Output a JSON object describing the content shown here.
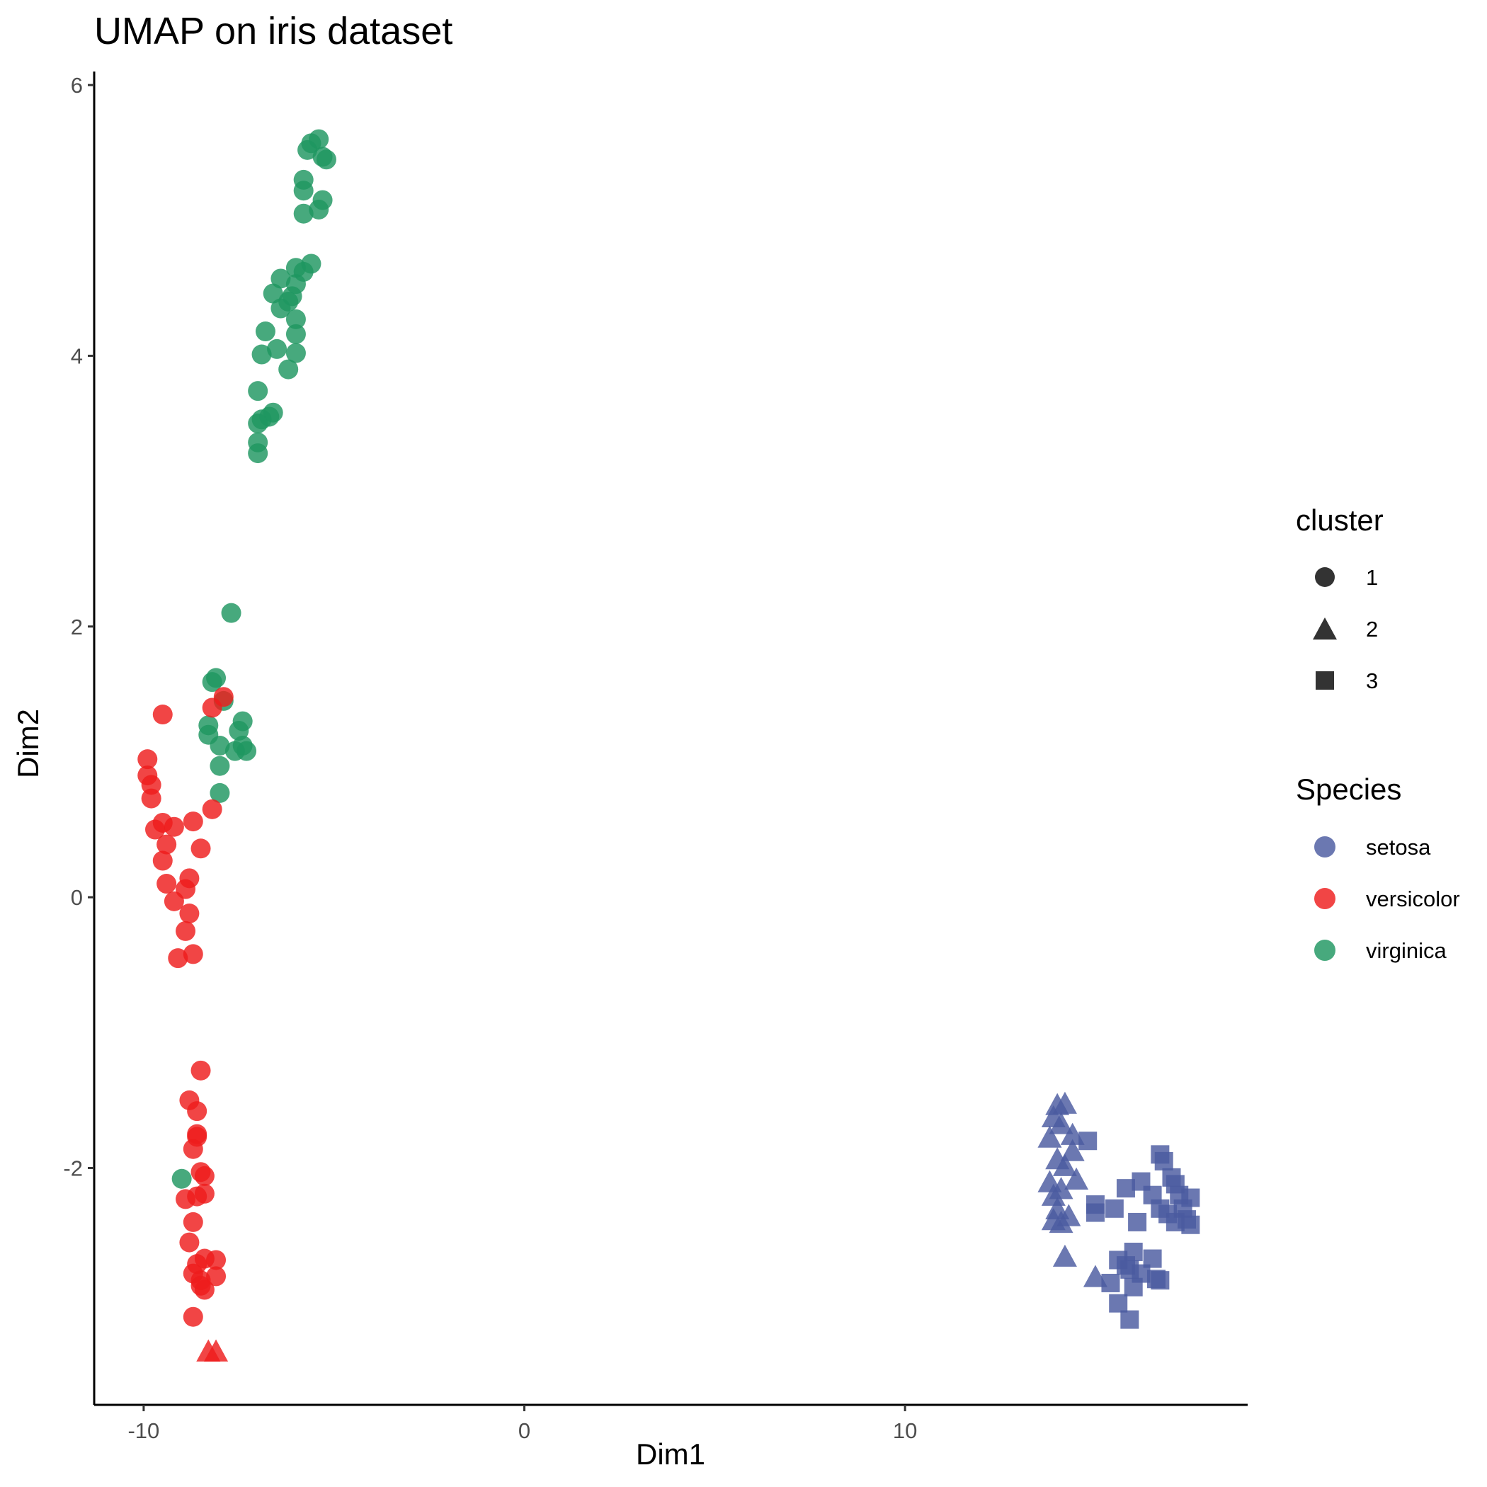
{
  "chart_data": {
    "type": "scatter",
    "title": "UMAP on iris dataset",
    "xlabel": "Dim1",
    "ylabel": "Dim2",
    "xlim": [
      -11.3,
      19.0
    ],
    "ylim": [
      -3.75,
      6.1
    ],
    "xticks": [
      -10,
      0,
      10
    ],
    "yticks": [
      -2,
      0,
      2,
      4,
      6
    ],
    "grid": false,
    "legend_position": "right",
    "legends": {
      "cluster": {
        "title": "cluster",
        "entries": [
          {
            "label": "1",
            "shape": "circle"
          },
          {
            "label": "2",
            "shape": "triangle"
          },
          {
            "label": "3",
            "shape": "square"
          }
        ]
      },
      "species": {
        "title": "Species",
        "entries": [
          {
            "label": "setosa",
            "color": "#4b5aa0"
          },
          {
            "label": "versicolor",
            "color": "#ee1c1c"
          },
          {
            "label": "virginica",
            "color": "#1f9660"
          }
        ]
      }
    },
    "colors": {
      "setosa": "#4b5aa0",
      "versicolor": "#ee1c1c",
      "virginica": "#1f9660",
      "legend_shape": "#333333"
    },
    "series": [
      {
        "species": "virginica",
        "points": [
          [
            -5.4,
            5.6,
            1
          ],
          [
            -5.6,
            5.57,
            1
          ],
          [
            -5.3,
            5.47,
            1
          ],
          [
            -5.7,
            5.52,
            1
          ],
          [
            -5.2,
            5.45,
            1
          ],
          [
            -5.8,
            5.3,
            1
          ],
          [
            -5.8,
            5.22,
            1
          ],
          [
            -5.3,
            5.15,
            1
          ],
          [
            -5.4,
            5.08,
            1
          ],
          [
            -5.8,
            5.05,
            1
          ],
          [
            -5.6,
            4.68,
            1
          ],
          [
            -6.0,
            4.65,
            1
          ],
          [
            -5.8,
            4.62,
            1
          ],
          [
            -6.4,
            4.57,
            1
          ],
          [
            -6.0,
            4.53,
            1
          ],
          [
            -6.6,
            4.46,
            1
          ],
          [
            -6.1,
            4.44,
            1
          ],
          [
            -6.2,
            4.4,
            1
          ],
          [
            -6.4,
            4.35,
            1
          ],
          [
            -6.0,
            4.27,
            1
          ],
          [
            -6.8,
            4.18,
            1
          ],
          [
            -6.0,
            4.16,
            1
          ],
          [
            -6.5,
            4.05,
            1
          ],
          [
            -6.0,
            4.02,
            1
          ],
          [
            -6.9,
            4.01,
            1
          ],
          [
            -6.2,
            3.9,
            1
          ],
          [
            -7.0,
            3.74,
            1
          ],
          [
            -6.6,
            3.58,
            1
          ],
          [
            -6.7,
            3.55,
            1
          ],
          [
            -6.9,
            3.53,
            1
          ],
          [
            -7.0,
            3.5,
            1
          ],
          [
            -7.0,
            3.36,
            1
          ],
          [
            -7.0,
            3.28,
            1
          ],
          [
            -7.7,
            2.1,
            1
          ],
          [
            -8.1,
            1.62,
            1
          ],
          [
            -8.2,
            1.59,
            1
          ],
          [
            -7.9,
            1.45,
            1
          ],
          [
            -7.4,
            1.3,
            1
          ],
          [
            -8.3,
            1.27,
            1
          ],
          [
            -7.5,
            1.23,
            1
          ],
          [
            -8.3,
            1.2,
            1
          ],
          [
            -8.0,
            1.12,
            1
          ],
          [
            -7.4,
            1.12,
            1
          ],
          [
            -7.6,
            1.08,
            1
          ],
          [
            -7.3,
            1.08,
            1
          ],
          [
            -8.0,
            0.97,
            1
          ],
          [
            -8.0,
            0.77,
            1
          ],
          [
            -9.0,
            -2.08,
            1
          ]
        ]
      },
      {
        "species": "versicolor",
        "points": [
          [
            -7.9,
            1.48,
            1
          ],
          [
            -8.2,
            1.4,
            1
          ],
          [
            -9.5,
            1.35,
            1
          ],
          [
            -9.9,
            1.02,
            1
          ],
          [
            -9.9,
            0.9,
            1
          ],
          [
            -9.8,
            0.83,
            1
          ],
          [
            -9.8,
            0.73,
            1
          ],
          [
            -8.2,
            0.65,
            1
          ],
          [
            -8.7,
            0.56,
            1
          ],
          [
            -9.5,
            0.55,
            1
          ],
          [
            -9.2,
            0.52,
            1
          ],
          [
            -9.7,
            0.5,
            1
          ],
          [
            -9.4,
            0.39,
            1
          ],
          [
            -8.5,
            0.36,
            1
          ],
          [
            -9.5,
            0.27,
            1
          ],
          [
            -8.8,
            0.14,
            1
          ],
          [
            -9.4,
            0.1,
            1
          ],
          [
            -8.9,
            0.06,
            1
          ],
          [
            -9.2,
            -0.03,
            1
          ],
          [
            -8.8,
            -0.12,
            1
          ],
          [
            -8.9,
            -0.25,
            1
          ],
          [
            -8.7,
            -0.42,
            1
          ],
          [
            -9.1,
            -0.45,
            1
          ],
          [
            -8.5,
            -1.28,
            1
          ],
          [
            -8.8,
            -1.5,
            1
          ],
          [
            -8.6,
            -1.58,
            1
          ],
          [
            -8.6,
            -1.75,
            1
          ],
          [
            -8.6,
            -1.77,
            1
          ],
          [
            -8.7,
            -1.86,
            1
          ],
          [
            -8.5,
            -2.03,
            1
          ],
          [
            -8.4,
            -2.06,
            1
          ],
          [
            -8.4,
            -2.19,
            1
          ],
          [
            -8.6,
            -2.21,
            1
          ],
          [
            -8.9,
            -2.23,
            1
          ],
          [
            -8.7,
            -2.4,
            1
          ],
          [
            -8.8,
            -2.55,
            1
          ],
          [
            -8.4,
            -2.67,
            1
          ],
          [
            -8.1,
            -2.68,
            1
          ],
          [
            -8.6,
            -2.71,
            1
          ],
          [
            -8.7,
            -2.78,
            1
          ],
          [
            -8.1,
            -2.8,
            1
          ],
          [
            -8.5,
            -2.83,
            1
          ],
          [
            -8.5,
            -2.87,
            1
          ],
          [
            -8.4,
            -2.9,
            1
          ],
          [
            -8.7,
            -3.1,
            1
          ],
          [
            -8.3,
            -3.35,
            2
          ],
          [
            -8.1,
            -3.35,
            2
          ]
        ]
      },
      {
        "species": "setosa",
        "points": [
          [
            14.0,
            -1.53,
            2
          ],
          [
            14.2,
            -1.52,
            2
          ],
          [
            13.9,
            -1.62,
            2
          ],
          [
            14.1,
            -1.67,
            2
          ],
          [
            14.4,
            -1.75,
            2
          ],
          [
            13.8,
            -1.77,
            2
          ],
          [
            14.4,
            -1.87,
            2
          ],
          [
            14.0,
            -1.93,
            2
          ],
          [
            14.2,
            -1.98,
            2
          ],
          [
            14.5,
            -2.08,
            2
          ],
          [
            13.8,
            -2.1,
            2
          ],
          [
            14.1,
            -2.15,
            2
          ],
          [
            13.9,
            -2.2,
            2
          ],
          [
            14.0,
            -2.3,
            2
          ],
          [
            14.3,
            -2.35,
            2
          ],
          [
            13.9,
            -2.38,
            2
          ],
          [
            14.1,
            -2.4,
            2
          ],
          [
            14.2,
            -2.65,
            2
          ],
          [
            15.0,
            -2.8,
            2
          ],
          [
            14.8,
            -1.8,
            3
          ],
          [
            16.7,
            -1.9,
            3
          ],
          [
            16.8,
            -1.95,
            3
          ],
          [
            16.2,
            -2.1,
            3
          ],
          [
            17.0,
            -2.07,
            3
          ],
          [
            15.8,
            -2.15,
            3
          ],
          [
            17.1,
            -2.12,
            3
          ],
          [
            16.5,
            -2.2,
            3
          ],
          [
            17.2,
            -2.2,
            3
          ],
          [
            17.5,
            -2.22,
            3
          ],
          [
            15.0,
            -2.27,
            3
          ],
          [
            16.7,
            -2.3,
            3
          ],
          [
            17.3,
            -2.3,
            3
          ],
          [
            15.5,
            -2.3,
            3
          ],
          [
            15.0,
            -2.33,
            3
          ],
          [
            16.9,
            -2.34,
            3
          ],
          [
            17.4,
            -2.38,
            3
          ],
          [
            16.1,
            -2.4,
            3
          ],
          [
            17.1,
            -2.4,
            3
          ],
          [
            17.5,
            -2.42,
            3
          ],
          [
            16.0,
            -2.62,
            3
          ],
          [
            15.6,
            -2.68,
            3
          ],
          [
            16.5,
            -2.67,
            3
          ],
          [
            15.8,
            -2.72,
            3
          ],
          [
            15.9,
            -2.75,
            3
          ],
          [
            16.2,
            -2.78,
            3
          ],
          [
            16.6,
            -2.82,
            3
          ],
          [
            16.7,
            -2.83,
            3
          ],
          [
            15.4,
            -2.85,
            3
          ],
          [
            16.0,
            -2.88,
            3
          ],
          [
            15.6,
            -3.0,
            3
          ],
          [
            15.9,
            -3.12,
            3
          ]
        ]
      }
    ]
  }
}
